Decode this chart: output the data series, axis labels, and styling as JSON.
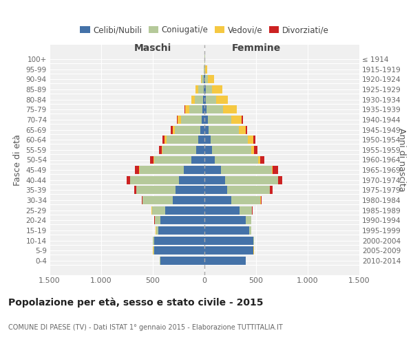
{
  "age_groups": [
    "0-4",
    "5-9",
    "10-14",
    "15-19",
    "20-24",
    "25-29",
    "30-34",
    "35-39",
    "40-44",
    "45-49",
    "50-54",
    "55-59",
    "60-64",
    "65-69",
    "70-74",
    "75-79",
    "80-84",
    "85-89",
    "90-94",
    "95-99",
    "100+"
  ],
  "birth_years": [
    "2010-2014",
    "2005-2009",
    "2000-2004",
    "1995-1999",
    "1990-1994",
    "1985-1989",
    "1980-1984",
    "1975-1979",
    "1970-1974",
    "1965-1969",
    "1960-1964",
    "1955-1959",
    "1950-1954",
    "1945-1949",
    "1940-1944",
    "1935-1939",
    "1930-1934",
    "1925-1929",
    "1920-1924",
    "1915-1919",
    "≤ 1914"
  ],
  "male": {
    "celibi": [
      430,
      490,
      490,
      450,
      430,
      380,
      310,
      280,
      250,
      200,
      130,
      80,
      60,
      40,
      30,
      20,
      15,
      10,
      5,
      2,
      2
    ],
    "coniugati": [
      2,
      5,
      10,
      20,
      50,
      130,
      290,
      380,
      470,
      430,
      360,
      330,
      310,
      250,
      200,
      130,
      80,
      50,
      20,
      3,
      0
    ],
    "vedovi": [
      0,
      2,
      2,
      2,
      2,
      2,
      2,
      2,
      2,
      2,
      5,
      5,
      15,
      20,
      30,
      40,
      30,
      25,
      10,
      2,
      0
    ],
    "divorziati": [
      0,
      0,
      0,
      0,
      2,
      2,
      5,
      20,
      30,
      40,
      30,
      25,
      20,
      15,
      10,
      5,
      0,
      0,
      0,
      0,
      0
    ]
  },
  "female": {
    "nubili": [
      400,
      470,
      470,
      430,
      400,
      340,
      260,
      220,
      200,
      160,
      100,
      70,
      60,
      40,
      30,
      20,
      15,
      10,
      5,
      2,
      2
    ],
    "coniugate": [
      2,
      5,
      10,
      20,
      50,
      120,
      280,
      410,
      510,
      490,
      420,
      380,
      360,
      290,
      230,
      160,
      100,
      60,
      25,
      5,
      2
    ],
    "vedove": [
      0,
      2,
      2,
      2,
      2,
      2,
      5,
      5,
      5,
      10,
      20,
      30,
      50,
      70,
      100,
      130,
      110,
      100,
      60,
      20,
      5
    ],
    "divorziate": [
      0,
      0,
      0,
      0,
      2,
      5,
      10,
      25,
      35,
      50,
      40,
      30,
      25,
      15,
      10,
      5,
      2,
      0,
      0,
      0,
      0
    ]
  },
  "colors": {
    "celibi": "#4472a8",
    "coniugati": "#b5c99a",
    "vedovi": "#f5c842",
    "divorziati": "#cc2222"
  },
  "title": "Popolazione per età, sesso e stato civile - 2015",
  "subtitle": "COMUNE DI PAESE (TV) - Dati ISTAT 1° gennaio 2015 - Elaborazione TUTTITALIA.IT",
  "ylabel_left": "Fasce di età",
  "ylabel_right": "Anni di nascita",
  "xlabel_maschi": "Maschi",
  "xlabel_femmine": "Femmine",
  "xlim": 1500,
  "background_color": "#ffffff",
  "plot_bg_color": "#f0f0f0"
}
